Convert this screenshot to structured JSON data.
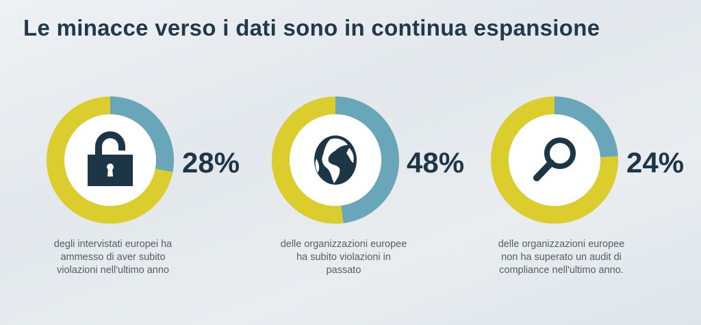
{
  "title": "Le minacce verso i dati sono in continua espansione",
  "colors": {
    "highlight": "#6aa6b9",
    "rest": "#dbcd2e",
    "icon": "#1c3646",
    "text": "#1f3646"
  },
  "chart_data": {
    "type": "pie",
    "variant": "donut",
    "charts": [
      {
        "value": 28,
        "label": "28%",
        "icon": "padlock-icon",
        "caption": "degli intervistati europei ha ammesso di aver subito violazioni nell'ultimo anno",
        "caption_lines": [
          "degli intervistati europei ha",
          "ammesso di aver subito",
          "violazioni nell'ultimo anno"
        ]
      },
      {
        "value": 48,
        "label": "48%",
        "icon": "globe-icon",
        "caption": "delle organizzazioni europee ha subito violazioni in passato",
        "caption_lines": [
          "delle organizzazioni europee",
          "ha subito violazioni in",
          "passato"
        ]
      },
      {
        "value": 24,
        "label": "24%",
        "icon": "magnifier-icon",
        "caption": "delle organizzazioni europee non ha superato un audit di compliance nell'ultimo anno.",
        "caption_lines": [
          "delle organizzazioni europee",
          "non ha superato un audit di",
          "compliance nell'ultimo anno."
        ]
      }
    ]
  }
}
